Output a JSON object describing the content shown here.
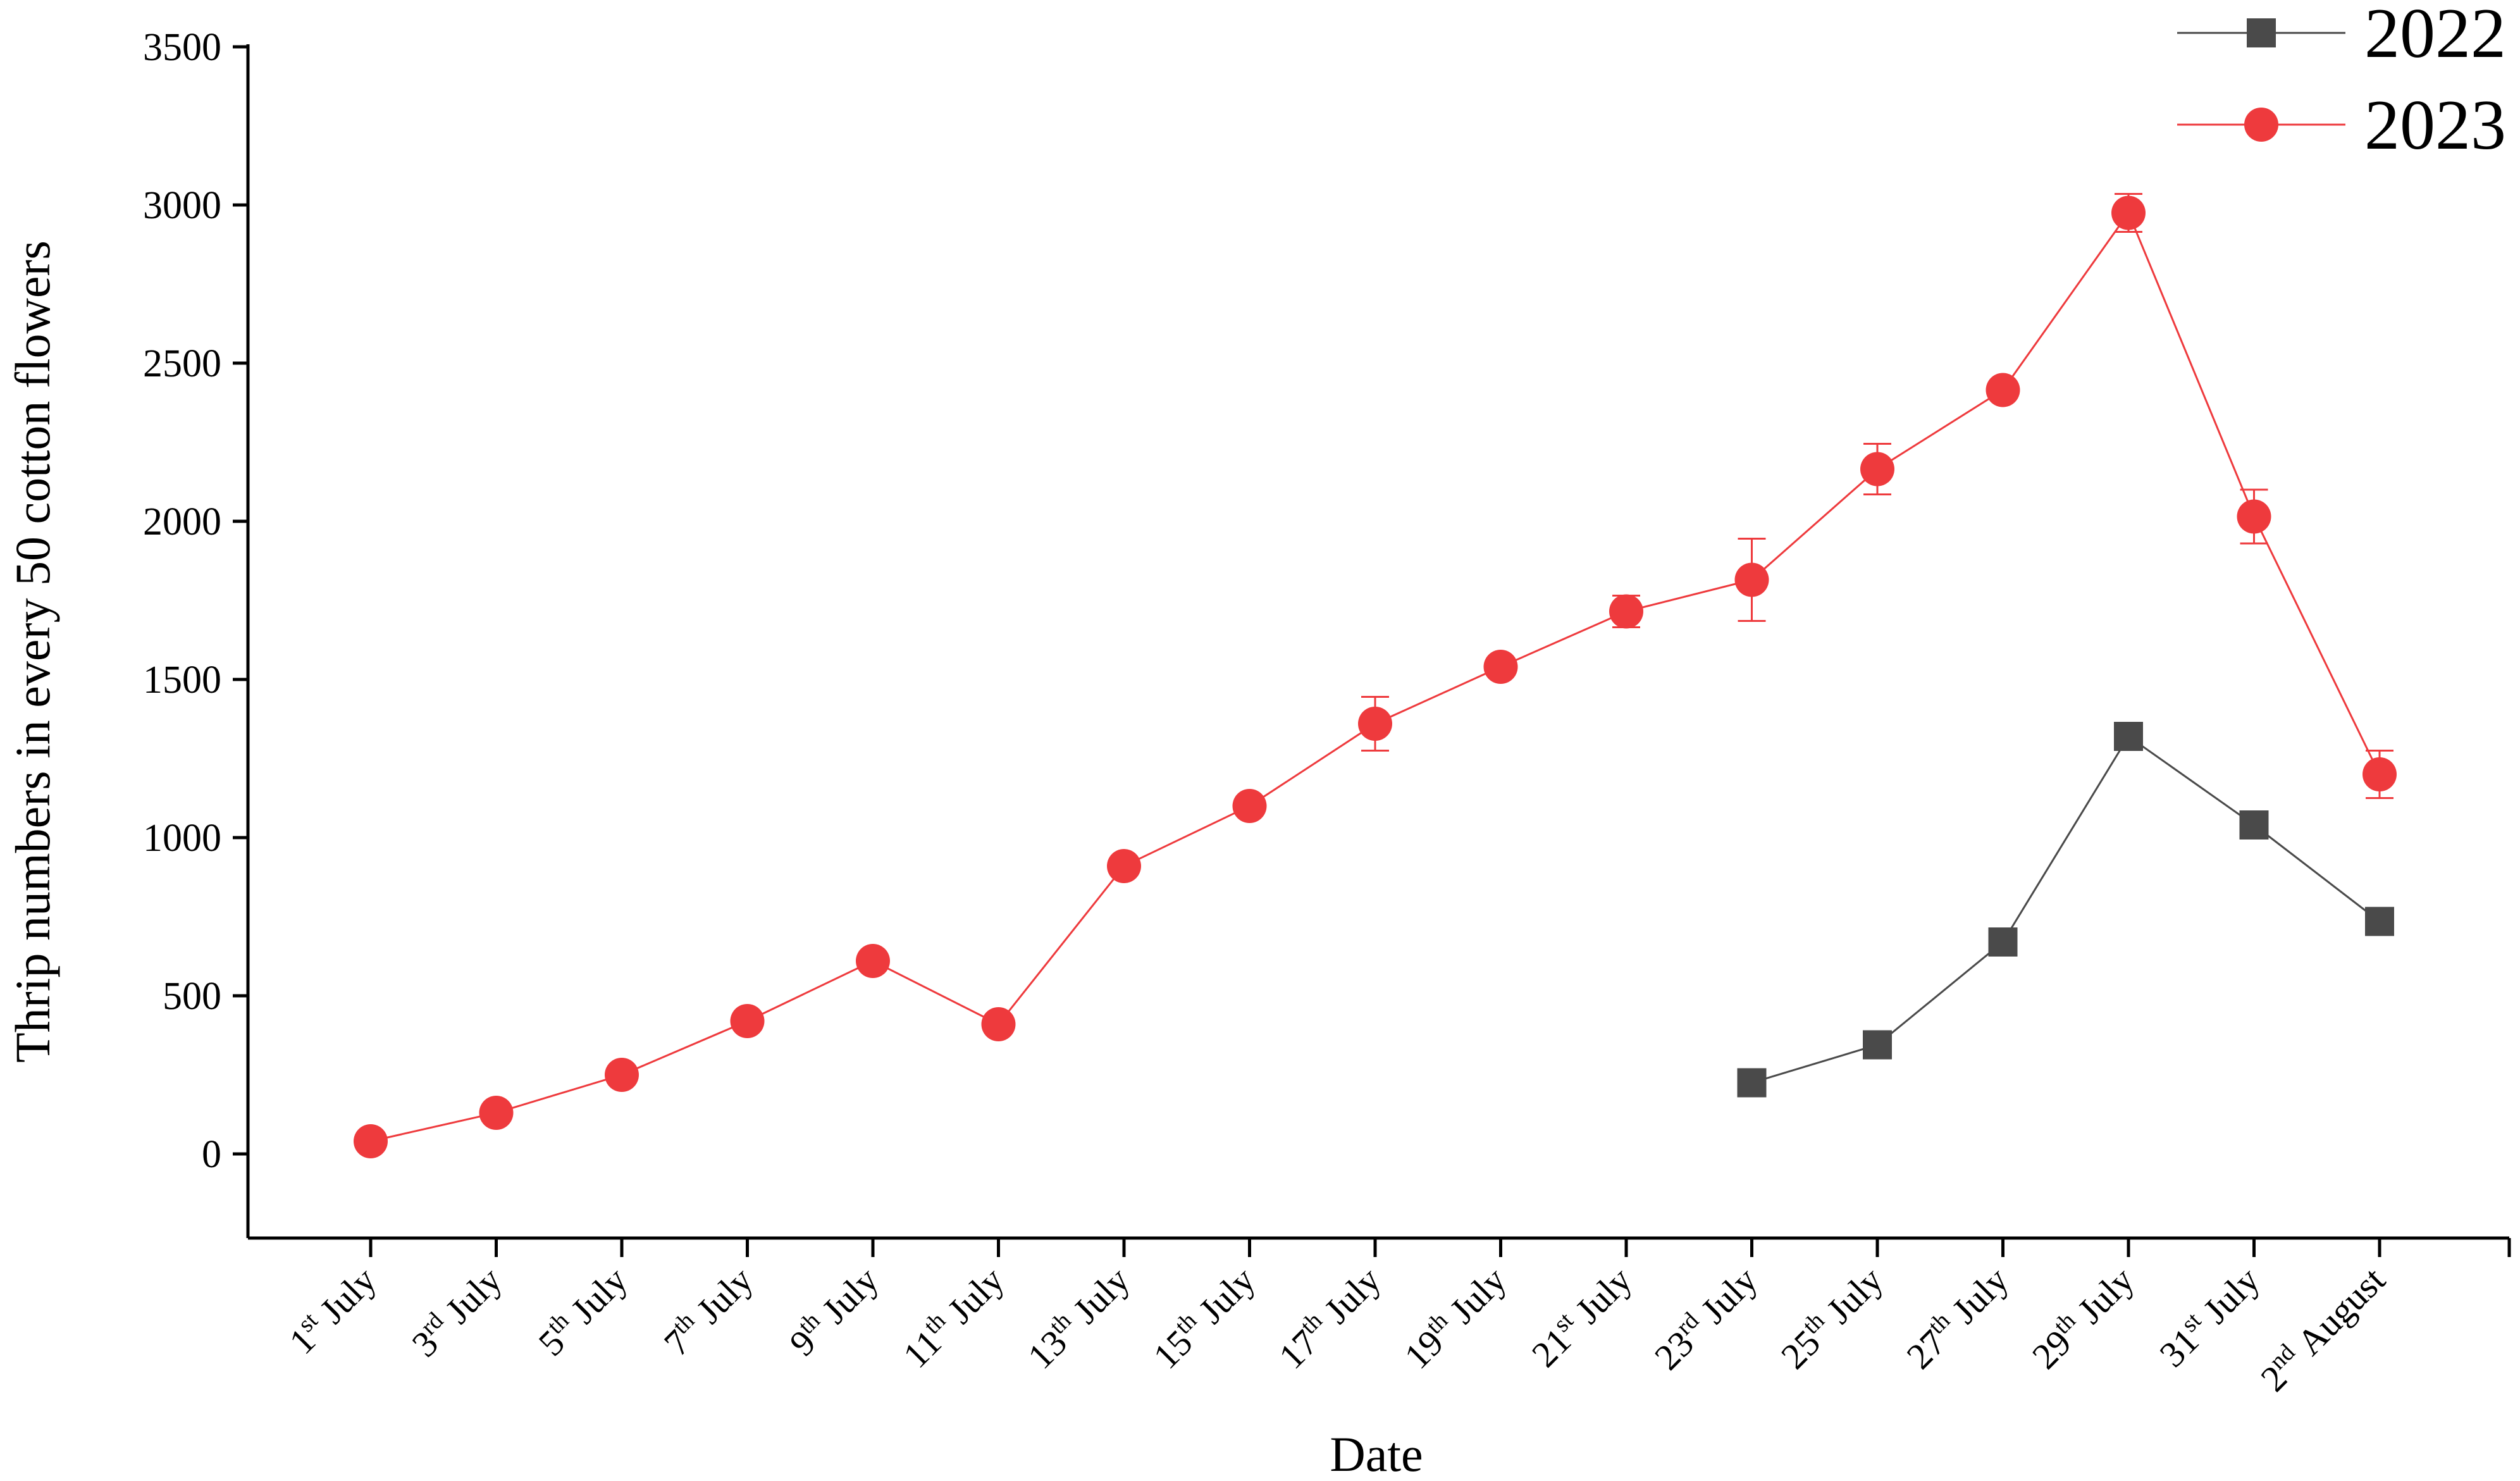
{
  "chart_data": {
    "type": "line",
    "xlabel": "Date",
    "ylabel": "Thrip numbers in every 50 cotton flowers",
    "ylim": [
      -250,
      3500
    ],
    "yticks": [
      0,
      500,
      1000,
      1500,
      2000,
      2500,
      3000,
      3500
    ],
    "categories": [
      {
        "num": "1",
        "sup": "st",
        "month": "July"
      },
      {
        "num": "3",
        "sup": "rd",
        "month": "July"
      },
      {
        "num": "5",
        "sup": "th",
        "month": "July"
      },
      {
        "num": "7",
        "sup": "th",
        "month": "July"
      },
      {
        "num": "9",
        "sup": "th",
        "month": "July"
      },
      {
        "num": "11",
        "sup": "th",
        "month": "July"
      },
      {
        "num": "13",
        "sup": "th",
        "month": "July"
      },
      {
        "num": "15",
        "sup": "th",
        "month": "July"
      },
      {
        "num": "17",
        "sup": "th",
        "month": "July"
      },
      {
        "num": "19",
        "sup": "th",
        "month": "July"
      },
      {
        "num": "21",
        "sup": "st",
        "month": "July"
      },
      {
        "num": "23",
        "sup": "rd",
        "month": "July"
      },
      {
        "num": "25",
        "sup": "th",
        "month": "July"
      },
      {
        "num": "27",
        "sup": "th",
        "month": "July"
      },
      {
        "num": "29",
        "sup": "th",
        "month": "July"
      },
      {
        "num": "31",
        "sup": "st",
        "month": "July"
      },
      {
        "num": "2",
        "sup": "nd",
        "month": "August"
      }
    ],
    "legend_position": "top-right",
    "grid": false,
    "series": [
      {
        "name": "2022",
        "marker": "square",
        "color": "#4a4a4a",
        "values": [
          null,
          null,
          null,
          null,
          null,
          null,
          null,
          null,
          null,
          null,
          null,
          225,
          345,
          670,
          1320,
          1040,
          735
        ],
        "errors": [
          null,
          null,
          null,
          null,
          null,
          null,
          null,
          null,
          null,
          null,
          null,
          0,
          0,
          0,
          0,
          0,
          0
        ]
      },
      {
        "name": "2023",
        "marker": "circle",
        "color": "#ee3a3d",
        "values": [
          40,
          130,
          250,
          420,
          610,
          410,
          910,
          1100,
          1360,
          1540,
          1715,
          1815,
          2165,
          2415,
          2975,
          2015,
          1200
        ],
        "errors": [
          0,
          0,
          0,
          0,
          0,
          0,
          0,
          0,
          85,
          0,
          50,
          130,
          80,
          0,
          60,
          85,
          75
        ]
      }
    ]
  }
}
